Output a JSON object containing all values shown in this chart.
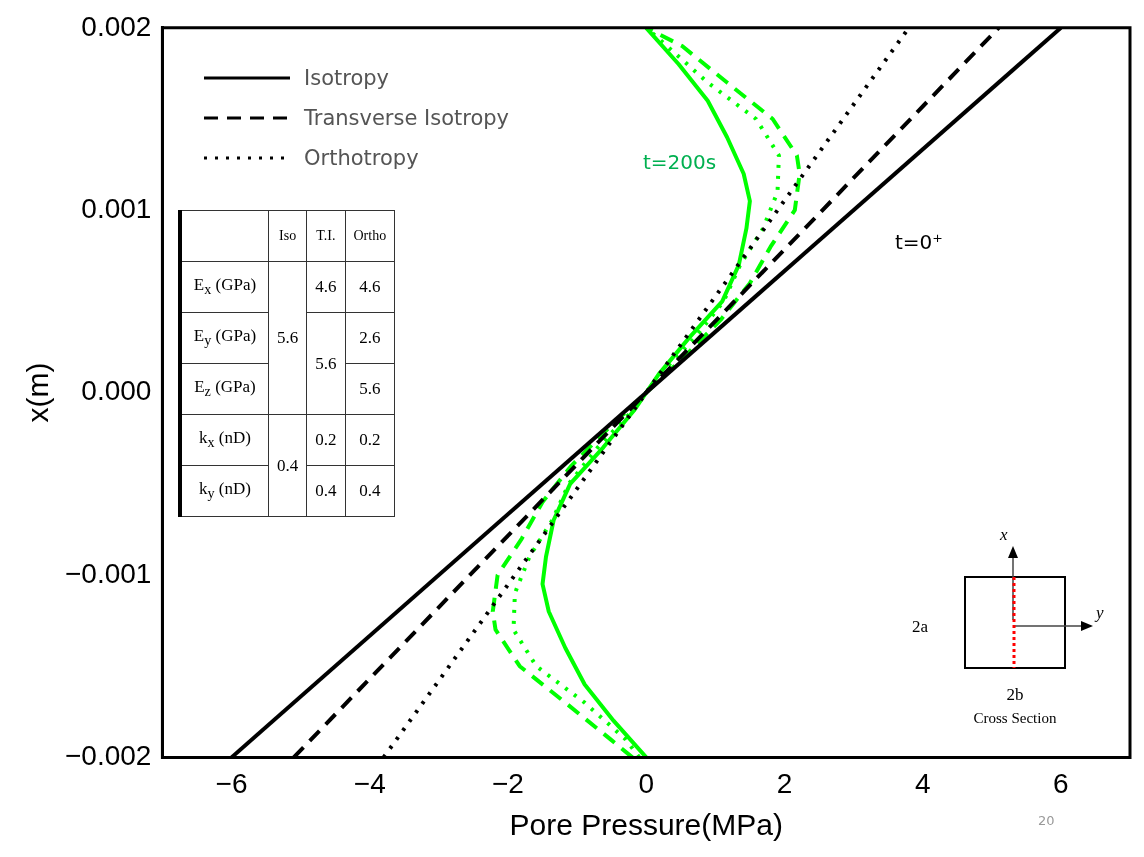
{
  "chart_data": {
    "type": "line",
    "xlabel": "Pore Pressure(MPa)",
    "ylabel": "x(m)",
    "xlim": [
      -7,
      7
    ],
    "ylim": [
      -0.002,
      0.002
    ],
    "xticks": [
      {
        "value": -6,
        "label": "−6"
      },
      {
        "value": -4,
        "label": "−4"
      },
      {
        "value": -2,
        "label": "−2"
      },
      0,
      2,
      4,
      6
    ],
    "yticks": [
      {
        "value": -0.002,
        "label": "−0.002"
      },
      {
        "value": -0.001,
        "label": "−0.001"
      },
      {
        "value": 0,
        "label": "0.000"
      },
      0.001,
      0.002
    ],
    "grid": false,
    "legend": "top left",
    "marker": "none",
    "series": [
      {
        "name": "Isotropy",
        "color": "#000000",
        "line_style": "solid",
        "x": [
          -6,
          6
        ],
        "values": [
          -0.002,
          0.002
        ]
      },
      {
        "name": "Transverse Isotropy",
        "color": "#000000",
        "line_style": "dashed",
        "x": [
          -5.1,
          5.1
        ],
        "values": [
          -0.002,
          0.002
        ]
      },
      {
        "name": "Orthotropy",
        "color": "#000000",
        "line_style": "dotted",
        "x": [
          -3.8,
          3.8
        ],
        "values": [
          -0.002,
          0.002
        ]
      },
      {
        "color": "#00ff00",
        "line_style": "solid",
        "x": [
          0,
          -0.47,
          -0.89,
          -1.17,
          -1.41,
          -1.5,
          -1.45,
          -1.34,
          -1.1,
          -0.62,
          -0.4,
          -0.18,
          0,
          0.18,
          0.4,
          0.62,
          1.1,
          1.34,
          1.45,
          1.5,
          1.41,
          1.17,
          0.89,
          0.47,
          0
        ],
        "values": [
          -0.002,
          -0.0018,
          -0.0016,
          -0.0014,
          -0.0012,
          -0.00105,
          -0.0009,
          -0.0007,
          -0.0005,
          -0.0003,
          -0.0002,
          -0.0001,
          0,
          0.0001,
          0.0002,
          0.0003,
          0.0005,
          0.0007,
          0.0009,
          0.00105,
          0.0012,
          0.0014,
          0.0016,
          0.0018,
          0.002
        ]
      },
      {
        "color": "#00ff00",
        "line_style": "dashed",
        "x": [
          -0.2,
          -0.52,
          -1.17,
          -1.83,
          -2.18,
          -2.22,
          -2.15,
          -1.8,
          -1.5,
          -1.08,
          -0.56,
          0,
          0.56,
          1.08,
          1.5,
          1.8,
          2.15,
          2.22,
          2.18,
          1.83,
          1.17,
          0.52,
          0
        ],
        "values": [
          -0.002,
          -0.0019,
          -0.0017,
          -0.0015,
          -0.0013,
          -0.0012,
          -0.001,
          -0.0008,
          -0.0006,
          -0.0004,
          -0.0002,
          0,
          0.0002,
          0.0004,
          0.0006,
          0.0008,
          0.001,
          0.0012,
          0.0013,
          0.0015,
          0.0017,
          0.0019,
          0.002
        ]
      },
      {
        "color": "#00ff00",
        "line_style": "dotted",
        "x": [
          -0.1,
          -0.3,
          -0.89,
          -1.59,
          -1.92,
          -1.9,
          -1.69,
          -1.36,
          -1.12,
          -0.7,
          -0.2,
          0,
          0.2,
          0.7,
          1.12,
          1.36,
          1.69,
          1.9,
          1.92,
          1.59,
          0.89,
          0.3,
          0
        ],
        "values": [
          -0.002,
          -0.0019,
          -0.0017,
          -0.0015,
          -0.0013,
          -0.0011,
          -0.0009,
          -0.0007,
          -0.0005,
          -0.0003,
          -0.0001,
          0,
          0.0001,
          0.0003,
          0.0005,
          0.0007,
          0.0009,
          0.0011,
          0.0013,
          0.0015,
          0.0017,
          0.0019,
          0.002
        ]
      }
    ],
    "annotations": [
      "t=200s",
      "t=0⁺",
      "Iso",
      "T.I.",
      "Ortho",
      "E$_{x}$ (GPa)",
      "5.6",
      "4.6",
      "4.6",
      "E$_{y}$ (GPa)",
      "5.6",
      "2.6",
      "E$_{z}$ (GPa)",
      "5.6",
      "k$_{x}$ (nD)",
      "0.4",
      "0.2",
      "0.2",
      "k$_{y}$ (nD)",
      "0.4",
      "0.4",
      "x",
      "y",
      "2a",
      "2b",
      "Cross Section",
      "20"
    ]
  }
}
